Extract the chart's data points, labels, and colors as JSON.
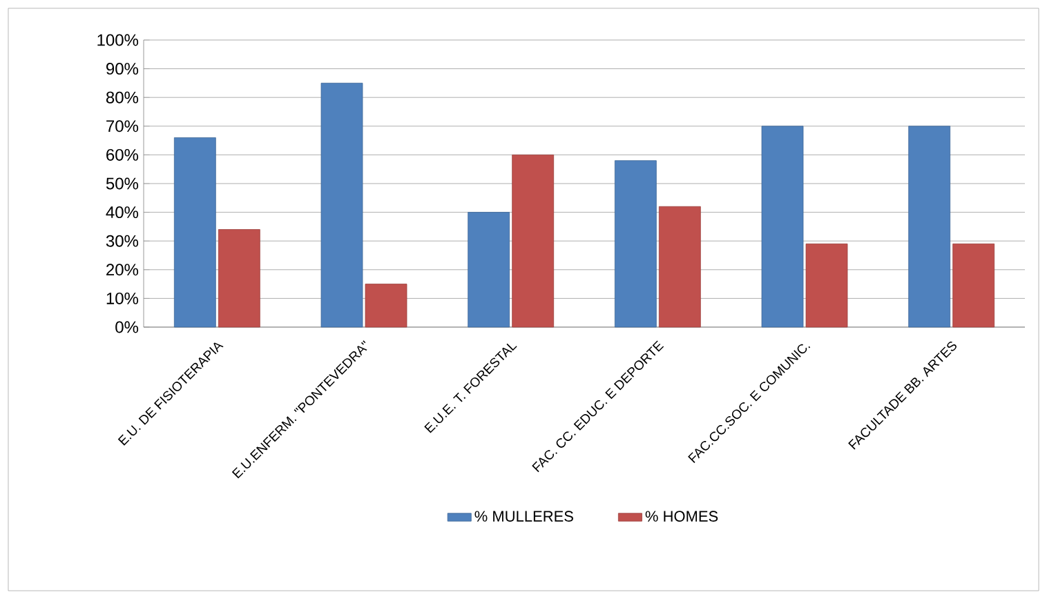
{
  "chart_data": {
    "type": "bar",
    "categories": [
      "E.U. DE FISIOTERAPIA",
      "E.U.ENFERM. \"PONTEVEDRA\"",
      "E.U.E. T. FORESTAL",
      "FAC. CC. EDUC. E DEPORTE",
      "FAC.CC.SOC. E COMUNIC.",
      "FACULTADE BB. ARTES"
    ],
    "series": [
      {
        "name": "% MULLERES",
        "color": "#4f81bd",
        "values": [
          66,
          85,
          40,
          58,
          70,
          70
        ]
      },
      {
        "name": "% HOMES",
        "color": "#c0504d",
        "values": [
          34,
          15,
          60,
          42,
          29,
          29
        ]
      }
    ],
    "ylim": [
      0,
      100
    ],
    "yticks": [
      {
        "value": 0,
        "label": "0%"
      },
      {
        "value": 10,
        "label": "10%"
      },
      {
        "value": 20,
        "label": "20%"
      },
      {
        "value": 30,
        "label": "30%"
      },
      {
        "value": 40,
        "label": "40%"
      },
      {
        "value": 50,
        "label": "50%"
      },
      {
        "value": 60,
        "label": "60%"
      },
      {
        "value": 70,
        "label": "70%"
      },
      {
        "value": 80,
        "label": "80%"
      },
      {
        "value": 90,
        "label": "90%"
      },
      {
        "value": 100,
        "label": "100%"
      }
    ],
    "grid": "y",
    "legend": "bottom"
  }
}
